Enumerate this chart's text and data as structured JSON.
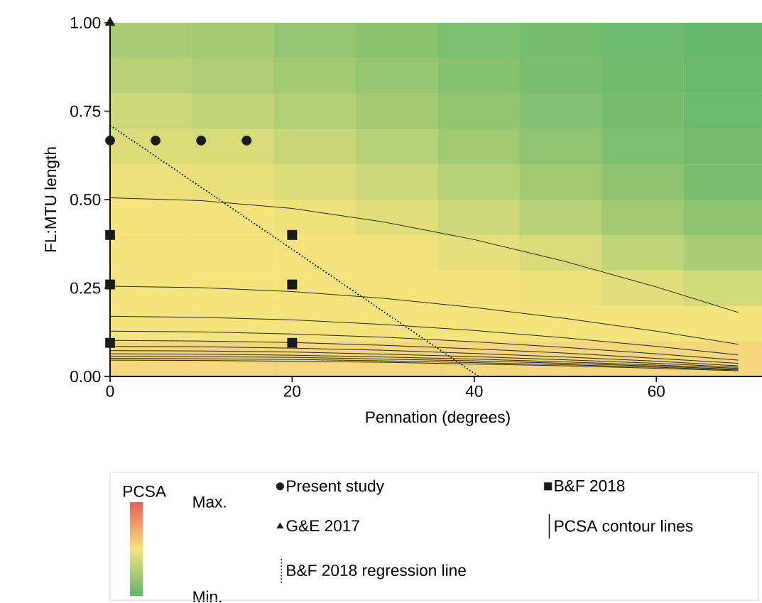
{
  "chart_data": [
    {
      "type": "heatmap",
      "clabel": "PCSA",
      "categories": [
        null,
        null,
        null,
        null,
        null,
        null,
        null,
        null
      ],
      "y_categories": [
        null,
        null,
        null,
        null,
        null,
        null,
        null,
        null,
        null,
        null
      ],
      "cells": [
        [
          0.25,
          0.22,
          0.18,
          0.14,
          0.1,
          0.07,
          0.04,
          0.02
        ],
        [
          0.3,
          0.27,
          0.22,
          0.18,
          0.13,
          0.09,
          0.05,
          0.03
        ],
        [
          0.36,
          0.33,
          0.28,
          0.22,
          0.17,
          0.12,
          0.07,
          0.04
        ],
        [
          0.42,
          0.4,
          0.35,
          0.29,
          0.22,
          0.16,
          0.1,
          0.06
        ],
        [
          0.47,
          0.46,
          0.42,
          0.36,
          0.29,
          0.22,
          0.15,
          0.09
        ],
        [
          0.5,
          0.5,
          0.48,
          0.43,
          0.37,
          0.3,
          0.22,
          0.15
        ],
        [
          0.5,
          0.5,
          0.5,
          0.49,
          0.45,
          0.4,
          0.32,
          0.25
        ],
        [
          0.5,
          0.5,
          0.5,
          0.5,
          0.5,
          0.48,
          0.44,
          0.38
        ],
        [
          0.5,
          0.5,
          0.5,
          0.5,
          0.5,
          0.5,
          0.5,
          0.5
        ],
        [
          0.55,
          0.55,
          0.55,
          0.55,
          0.55,
          0.55,
          0.55,
          0.55
        ]
      ],
      "clim": [
        0,
        1
      ],
      "cticks": [
        {
          "value": 0,
          "label": "Min."
        },
        {
          "value": 1,
          "label": "Max."
        }
      ]
    },
    {
      "type": "scatter",
      "xlabel": "Pennation (degrees)",
      "ylabel": "FL:MTU length",
      "xlim": [
        0,
        72
      ],
      "ylim": [
        0,
        1
      ],
      "xticks": [
        0,
        20,
        40,
        60
      ],
      "yticks": [
        {
          "value": 0,
          "label": "0.00"
        },
        {
          "value": 0.25,
          "label": "0.25"
        },
        {
          "value": 0.5,
          "label": "0.50"
        },
        {
          "value": 0.75,
          "label": "0.75"
        },
        {
          "value": 1,
          "label": "1.00"
        }
      ],
      "legend": "bottom",
      "series": [
        {
          "name": "Present study",
          "type": "scatter",
          "marker": "circle",
          "color": "#1a1a1a",
          "x": [
            0,
            5,
            10,
            15
          ],
          "values": [
            0.667,
            0.667,
            0.667,
            0.667
          ]
        },
        {
          "name": "B&F 2018",
          "type": "scatter",
          "marker": "square",
          "color": "#1a1a1a",
          "x": [
            0,
            0,
            0,
            20,
            20,
            20
          ],
          "values": [
            0.4,
            0.26,
            0.095,
            0.4,
            0.26,
            0.095
          ]
        },
        {
          "name": "G&E 2017",
          "type": "scatter",
          "marker": "triangle",
          "color": "#1a1a1a",
          "x": [
            0
          ],
          "values": [
            1.0
          ]
        },
        {
          "name": "PCSA contour lines",
          "type": "line",
          "line_style": "solid",
          "color": "#1a1a1a",
          "x": [
            0,
            10,
            20,
            30,
            40,
            50,
            60,
            69
          ],
          "values": [
            0.505,
            0.497,
            0.475,
            0.437,
            0.387,
            0.325,
            0.253,
            0.181
          ]
        },
        {
          "name": "B&F 2018 regression line",
          "type": "line",
          "line_style": "dotted",
          "color": "#1a1a1a",
          "x": [
            0,
            40.5
          ],
          "values": [
            0.71,
            0
          ]
        },
        {
          "type": "line",
          "line_style": "solid",
          "color": "#1a1a1a",
          "x": [
            0,
            10,
            20,
            30,
            40,
            50,
            60,
            69
          ],
          "values": [
            0.255,
            0.251,
            0.24,
            0.221,
            0.195,
            0.164,
            0.128,
            0.091
          ]
        },
        {
          "type": "line",
          "line_style": "solid",
          "color": "#1a1a1a",
          "x": [
            0,
            10,
            20,
            30,
            40,
            50,
            60,
            69
          ],
          "values": [
            0.17,
            0.167,
            0.16,
            0.147,
            0.13,
            0.109,
            0.085,
            0.061
          ]
        },
        {
          "type": "line",
          "line_style": "solid",
          "color": "#1a1a1a",
          "x": [
            0,
            10,
            20,
            30,
            40,
            50,
            60,
            69
          ],
          "values": [
            0.128,
            0.126,
            0.12,
            0.111,
            0.098,
            0.082,
            0.064,
            0.046
          ]
        },
        {
          "type": "line",
          "line_style": "solid",
          "color": "#1a1a1a",
          "x": [
            0,
            10,
            20,
            30,
            40,
            50,
            60,
            69
          ],
          "values": [
            0.102,
            0.1,
            0.096,
            0.088,
            0.078,
            0.066,
            0.051,
            0.037
          ]
        },
        {
          "type": "line",
          "line_style": "solid",
          "color": "#1a1a1a",
          "x": [
            0,
            10,
            20,
            30,
            40,
            50,
            60,
            69
          ],
          "values": [
            0.085,
            0.084,
            0.08,
            0.074,
            0.065,
            0.055,
            0.043,
            0.03
          ]
        },
        {
          "type": "line",
          "line_style": "solid",
          "color": "#1a1a1a",
          "x": [
            0,
            10,
            20,
            30,
            40,
            50,
            60,
            69
          ],
          "values": [
            0.073,
            0.072,
            0.069,
            0.063,
            0.056,
            0.047,
            0.037,
            0.026
          ]
        },
        {
          "type": "line",
          "line_style": "solid",
          "color": "#1a1a1a",
          "x": [
            0,
            10,
            20,
            30,
            40,
            50,
            60,
            69
          ],
          "values": [
            0.064,
            0.063,
            0.06,
            0.055,
            0.049,
            0.041,
            0.032,
            0.023
          ]
        },
        {
          "type": "line",
          "line_style": "solid",
          "color": "#1a1a1a",
          "x": [
            0,
            10,
            20,
            30,
            40,
            50,
            60,
            69
          ],
          "values": [
            0.057,
            0.056,
            0.054,
            0.049,
            0.044,
            0.037,
            0.029,
            0.02
          ]
        },
        {
          "type": "line",
          "line_style": "solid",
          "color": "#1a1a1a",
          "x": [
            0,
            10,
            20,
            30,
            40,
            50,
            60,
            69
          ],
          "values": [
            0.051,
            0.05,
            0.048,
            0.044,
            0.039,
            0.033,
            0.026,
            0.018
          ]
        },
        {
          "type": "line",
          "line_style": "solid",
          "color": "#1a1a1a",
          "x": [
            0,
            10,
            20,
            30,
            40,
            50,
            60,
            69
          ],
          "values": [
            0.046,
            0.045,
            0.043,
            0.04,
            0.035,
            0.03,
            0.023,
            0.016
          ]
        }
      ]
    }
  ]
}
